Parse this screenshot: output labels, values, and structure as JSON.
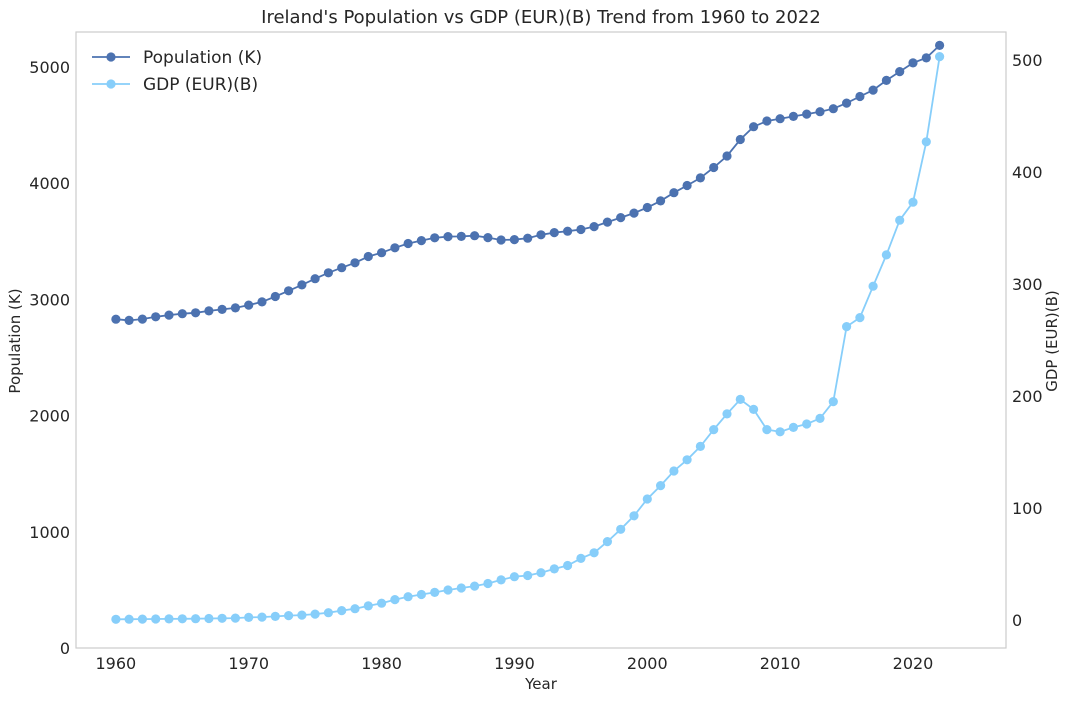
{
  "chart_data": {
    "type": "line",
    "title": "Ireland's Population vs GDP (EUR)(B) Trend from 1960 to 2022",
    "xlabel": "Year",
    "ylabel_left": "Population (K)",
    "ylabel_right": "GDP (EUR)(B)",
    "xlim": [
      1957,
      2027
    ],
    "ylim_left": [
      0,
      5300
    ],
    "ylim_right": [
      -25,
      525
    ],
    "x_ticks": [
      1960,
      1970,
      1980,
      1990,
      2000,
      2010,
      2020
    ],
    "y_left_ticks": [
      0,
      1000,
      2000,
      3000,
      4000,
      5000
    ],
    "y_right_ticks": [
      0,
      100,
      200,
      300,
      400,
      500
    ],
    "grid": false,
    "legend_position": "top-left",
    "x": [
      1960,
      1961,
      1962,
      1963,
      1964,
      1965,
      1966,
      1967,
      1968,
      1969,
      1970,
      1971,
      1972,
      1973,
      1974,
      1975,
      1976,
      1977,
      1978,
      1979,
      1980,
      1981,
      1982,
      1983,
      1984,
      1985,
      1986,
      1987,
      1988,
      1989,
      1990,
      1991,
      1992,
      1993,
      1994,
      1995,
      1996,
      1997,
      1998,
      1999,
      2000,
      2001,
      2002,
      2003,
      2004,
      2005,
      2006,
      2007,
      2008,
      2009,
      2010,
      2011,
      2012,
      2013,
      2014,
      2015,
      2016,
      2017,
      2018,
      2019,
      2020,
      2021,
      2022
    ],
    "series": [
      {
        "name": "Population (K)",
        "axis": "left",
        "color": "#4c72b0",
        "values": [
          2829,
          2819,
          2830,
          2850,
          2864,
          2876,
          2884,
          2900,
          2913,
          2926,
          2950,
          2978,
          3024,
          3073,
          3124,
          3177,
          3228,
          3272,
          3314,
          3368,
          3401,
          3443,
          3480,
          3505,
          3529,
          3540,
          3541,
          3547,
          3531,
          3510,
          3514,
          3526,
          3555,
          3574,
          3586,
          3601,
          3626,
          3664,
          3703,
          3742,
          3790,
          3847,
          3917,
          3979,
          4045,
          4134,
          4233,
          4375,
          4485,
          4534,
          4554,
          4574,
          4594,
          4614,
          4640,
          4688,
          4745,
          4800,
          4884,
          4959,
          5034,
          5077,
          5185
        ],
        "marker": "circle"
      },
      {
        "name": "GDP (EUR)(B)",
        "axis": "right",
        "color": "#87cefa",
        "values": [
          0.6,
          0.7,
          0.8,
          0.9,
          1.0,
          1.1,
          1.2,
          1.3,
          1.5,
          1.7,
          2.3,
          2.6,
          3.2,
          3.9,
          4.4,
          5.3,
          6.5,
          8.4,
          10.1,
          12.6,
          15.0,
          18.2,
          20.8,
          22.8,
          24.6,
          26.8,
          28.6,
          30.3,
          32.6,
          35.8,
          38.7,
          39.7,
          42.2,
          45.6,
          48.7,
          55.0,
          60.0,
          70.0,
          81.0,
          93.0,
          108.0,
          120.0,
          133.0,
          143.0,
          155.0,
          170.0,
          184.0,
          197.0,
          188.0,
          170.0,
          168.0,
          172.0,
          175.0,
          180.0,
          195.0,
          262.0,
          270.0,
          298.0,
          326.0,
          357.0,
          373.0,
          427.0,
          503.0
        ],
        "marker": "circle"
      }
    ]
  }
}
